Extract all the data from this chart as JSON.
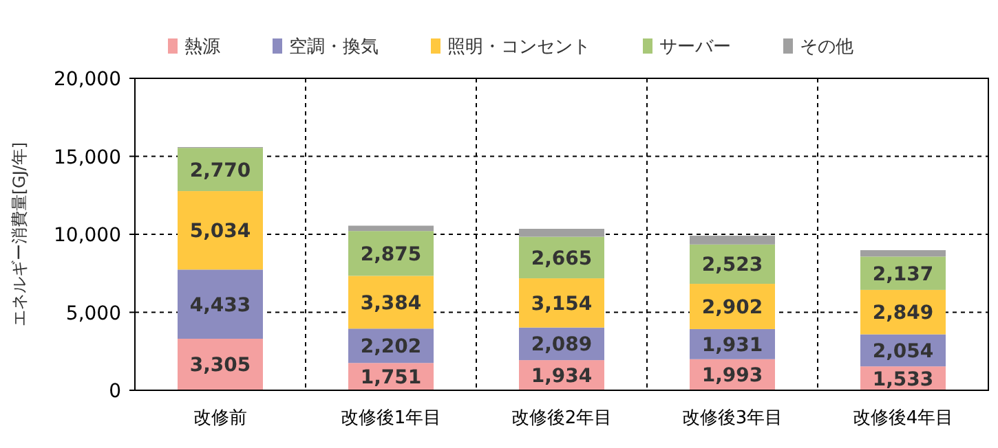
{
  "chart_data": {
    "type": "bar",
    "stacked": true,
    "ylabel": "エネルギー消費量[GJ/年]",
    "categories": [
      "改修前",
      "改修後1年目",
      "改修後2年目",
      "改修後3年目",
      "改修後4年目"
    ],
    "series": [
      {
        "name": "熱源",
        "color": "#f4a0a0",
        "values": [
          3305,
          1751,
          1934,
          1993,
          1533
        ],
        "value_labels": [
          "3,305",
          "1,751",
          "1,934",
          "1,993",
          "1,533"
        ]
      },
      {
        "name": "空調・換気",
        "color": "#8c8cc0",
        "values": [
          4433,
          2202,
          2089,
          1931,
          2054
        ],
        "value_labels": [
          "4,433",
          "2,202",
          "2,089",
          "1,931",
          "2,054"
        ]
      },
      {
        "name": "照明・コンセント",
        "color": "#ffc840",
        "values": [
          5034,
          3384,
          3154,
          2902,
          2849
        ],
        "value_labels": [
          "5,034",
          "3,384",
          "3,154",
          "2,902",
          "2,849"
        ]
      },
      {
        "name": "サーバー",
        "color": "#a8c878",
        "values": [
          2770,
          2875,
          2665,
          2523,
          2137
        ],
        "value_labels": [
          "2,770",
          "2,875",
          "2,665",
          "2,523",
          "2,137"
        ]
      },
      {
        "name": "その他",
        "color": "#a0a0a0",
        "values": [
          50,
          340,
          510,
          560,
          410
        ]
      }
    ],
    "ylim": [
      0,
      20000
    ],
    "yticks": [
      {
        "value": 0,
        "label": "0"
      },
      {
        "value": 5000,
        "label": "5,000"
      },
      {
        "value": 10000,
        "label": "10,000"
      },
      {
        "value": 15000,
        "label": "15,000"
      },
      {
        "value": 20000,
        "label": "20,000"
      }
    ],
    "grid": true,
    "legend": "top"
  }
}
